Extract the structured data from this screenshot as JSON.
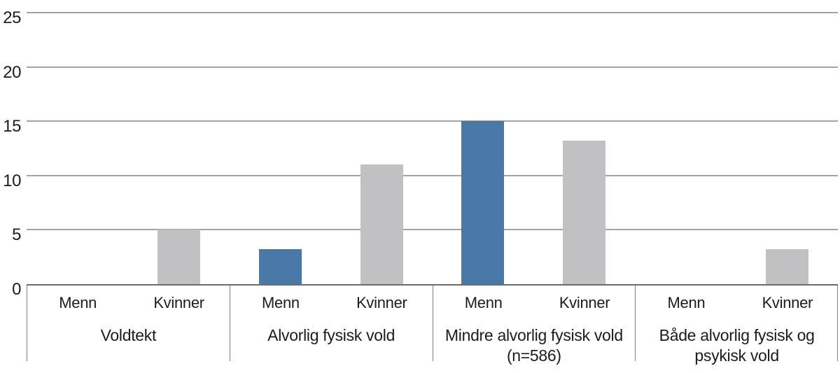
{
  "chart_data": {
    "type": "bar",
    "title": "",
    "xlabel": "",
    "ylabel": "",
    "categories": [
      "Voldtekt",
      "Alvorlig fysisk vold",
      "Mindre alvorlig fysisk vold (n=586)",
      "Både alvorlig fysisk og psykisk vold"
    ],
    "series": [
      {
        "name": "Menn",
        "color": "#4879A7",
        "values": [
          0,
          3.2,
          15,
          0
        ]
      },
      {
        "name": "Kvinner",
        "color": "#C1C1C3",
        "values": [
          5,
          11,
          13.2,
          3.2
        ]
      }
    ],
    "ylim": [
      0,
      25
    ],
    "yticks": [
      25,
      20,
      15,
      10,
      5,
      0
    ],
    "grid": true,
    "legend_position": "none"
  },
  "colors": {
    "bar_menn": "#4879A7",
    "bar_kvinner": "#C1C1C3",
    "gridline": "#A4A4A4",
    "baseline": "#6B6B6B",
    "separator": "#7F7F7F",
    "text": "#1C1C1C",
    "background": "#FFFFFF"
  }
}
